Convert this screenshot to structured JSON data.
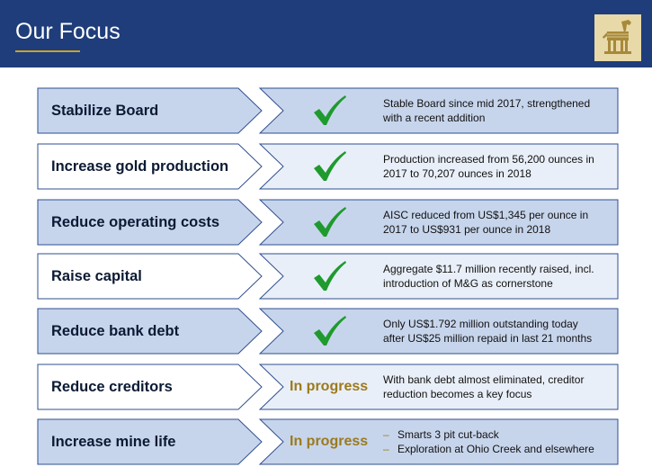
{
  "header": {
    "title": "Our Focus"
  },
  "colors": {
    "header_bg": "#1f3d7a",
    "accent_gold": "#c9a227",
    "check_green": "#1f9a2e",
    "status_gold": "#9c7a1c"
  },
  "rows": [
    {
      "label": "Stabilize Board",
      "status": "check-icon",
      "desc": [
        "Stable Board since mid 2017, strengthened",
        "with a recent addition"
      ]
    },
    {
      "label": "Increase gold production",
      "status": "check-icon",
      "desc": [
        "Production increased from 56,200 ounces in",
        "2017 to 70,207 ounces in 2018"
      ]
    },
    {
      "label": "Reduce operating costs",
      "status": "check-icon",
      "desc": [
        "AISC reduced from US$1,345 per ounce in",
        "2017 to US$931 per ounce in 2018"
      ]
    },
    {
      "label": "Raise capital",
      "status": "check-icon",
      "desc": [
        "Aggregate $11.7 million recently raised, incl.",
        "introduction of M&G as cornerstone"
      ]
    },
    {
      "label": "Reduce bank debt",
      "status": "check-icon",
      "desc": [
        "Only US$1.792 million outstanding today",
        "after US$25 million repaid in last 21 months"
      ]
    },
    {
      "label": "Reduce creditors",
      "status_text": "In progress",
      "desc": [
        "With bank debt almost eliminated, creditor",
        "reduction becomes a key focus"
      ]
    },
    {
      "label": "Increase mine life",
      "status_text": "In progress",
      "bullets": [
        "Smarts 3 pit cut-back",
        "Exploration at Ohio Creek and elsewhere"
      ]
    }
  ]
}
